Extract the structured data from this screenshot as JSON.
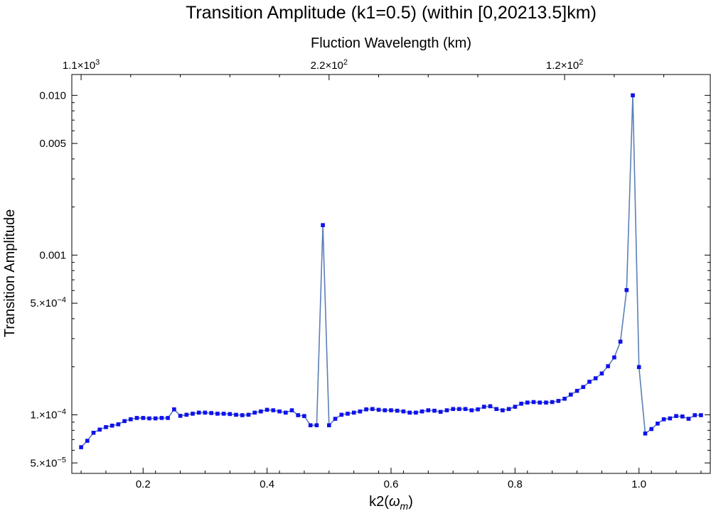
{
  "title": "Transition Amplitude (k1=0.5) (within [0,20213.5]km)",
  "chart_data": {
    "type": "line",
    "xlabel_main": "k2",
    "xlabel_sub": "m",
    "xlabel_symbol": "ω",
    "x2label": "Fluction Wavelength (km)",
    "ylabel": "Transition Amplitude",
    "yscale": "log",
    "xlim": [
      0.085,
      1.115
    ],
    "ylim": [
      4.3e-05,
      0.0135
    ],
    "grid": false,
    "legend": "none",
    "x_ticks": [
      {
        "value": 0.2,
        "label": "0.2"
      },
      {
        "value": 0.4,
        "label": "0.4"
      },
      {
        "value": 0.6,
        "label": "0.6"
      },
      {
        "value": 0.8,
        "label": "0.8"
      },
      {
        "value": 1.0,
        "label": "1.0"
      }
    ],
    "top_ticks": [
      {
        "value": 0.1,
        "mantissa": "1.1×10",
        "exp": "3"
      },
      {
        "value": 0.5,
        "mantissa": "2.2×10",
        "exp": "2"
      },
      {
        "value": 0.88,
        "mantissa": "1.2×10",
        "exp": "2"
      }
    ],
    "y_ticks": [
      {
        "value": 5e-05,
        "mantissa": "5.×10",
        "exp": "−5"
      },
      {
        "value": 0.0001,
        "mantissa": "1.×10",
        "exp": "−4"
      },
      {
        "value": 0.0005,
        "mantissa": "5.×10",
        "exp": "−4"
      },
      {
        "value": 0.001,
        "label": "0.001"
      },
      {
        "value": 0.005,
        "label": "0.005"
      },
      {
        "value": 0.01,
        "label": "0.010"
      }
    ],
    "line_color": "#5b7fb5",
    "marker_color": "#1010ee",
    "series": [
      {
        "x": [
          0.1,
          0.11,
          0.12,
          0.13,
          0.14,
          0.15,
          0.16,
          0.17,
          0.18,
          0.19,
          0.2,
          0.21,
          0.22,
          0.23,
          0.24,
          0.25,
          0.26,
          0.27,
          0.28,
          0.29,
          0.3,
          0.31,
          0.32,
          0.33,
          0.34,
          0.35,
          0.36,
          0.37,
          0.38,
          0.39,
          0.4,
          0.41,
          0.42,
          0.43,
          0.44,
          0.45,
          0.46,
          0.47,
          0.48,
          0.49,
          0.5,
          0.51,
          0.52,
          0.53,
          0.54,
          0.55,
          0.56,
          0.57,
          0.58,
          0.59,
          0.6,
          0.61,
          0.62,
          0.63,
          0.64,
          0.65,
          0.66,
          0.67,
          0.68,
          0.69,
          0.7,
          0.71,
          0.72,
          0.73,
          0.74,
          0.75,
          0.76,
          0.77,
          0.78,
          0.79,
          0.8,
          0.81,
          0.82,
          0.83,
          0.84,
          0.85,
          0.86,
          0.87,
          0.88,
          0.89,
          0.9,
          0.91,
          0.92,
          0.93,
          0.94,
          0.95,
          0.96,
          0.97,
          0.98,
          0.99,
          1.0,
          1.01,
          1.02,
          1.03,
          1.04,
          1.05,
          1.06,
          1.07,
          1.08,
          1.09,
          1.1
        ],
        "y": [
          6.27e-05,
          6.88e-05,
          7.72e-05,
          8.08e-05,
          8.38e-05,
          8.56e-05,
          8.72e-05,
          9.14e-05,
          9.38e-05,
          9.56e-05,
          9.56e-05,
          9.5e-05,
          9.5e-05,
          9.56e-05,
          9.56e-05,
          0.0001082,
          9.86e-05,
          0.0001001,
          0.0001017,
          0.0001032,
          0.0001032,
          0.0001026,
          0.0001017,
          0.0001017,
          0.0001011,
          0.0001001,
          9.95e-05,
          0.0001001,
          0.0001032,
          0.000105,
          0.0001075,
          0.0001068,
          0.000105,
          0.0001032,
          0.0001068,
          9.95e-05,
          9.83e-05,
          8.6e-05,
          8.6e-05,
          0.00154,
          8.6e-05,
          9.44e-05,
          0.0001001,
          0.0001017,
          0.0001032,
          0.000105,
          0.0001082,
          0.0001088,
          0.0001075,
          0.0001068,
          0.0001068,
          0.0001061,
          0.000105,
          0.0001032,
          0.0001032,
          0.000105,
          0.0001068,
          0.0001061,
          0.0001044,
          0.0001068,
          0.0001088,
          0.0001088,
          0.0001088,
          0.0001068,
          0.0001082,
          0.0001124,
          0.0001132,
          0.0001088,
          0.0001068,
          0.0001088,
          0.0001124,
          0.0001174,
          0.0001193,
          0.0001202,
          0.0001193,
          0.0001193,
          0.0001202,
          0.0001222,
          0.0001261,
          0.0001338,
          0.0001413,
          0.0001493,
          0.000161,
          0.0001693,
          0.0001816,
          0.0002016,
          0.0002287,
          0.000287,
          0.000604,
          0.01,
          0.000199,
          7.64e-05,
          8.15e-05,
          8.82e-05,
          9.38e-05,
          9.5e-05,
          9.83e-05,
          9.77e-05,
          9.44e-05,
          9.95e-05,
          9.95e-05
        ]
      }
    ]
  }
}
